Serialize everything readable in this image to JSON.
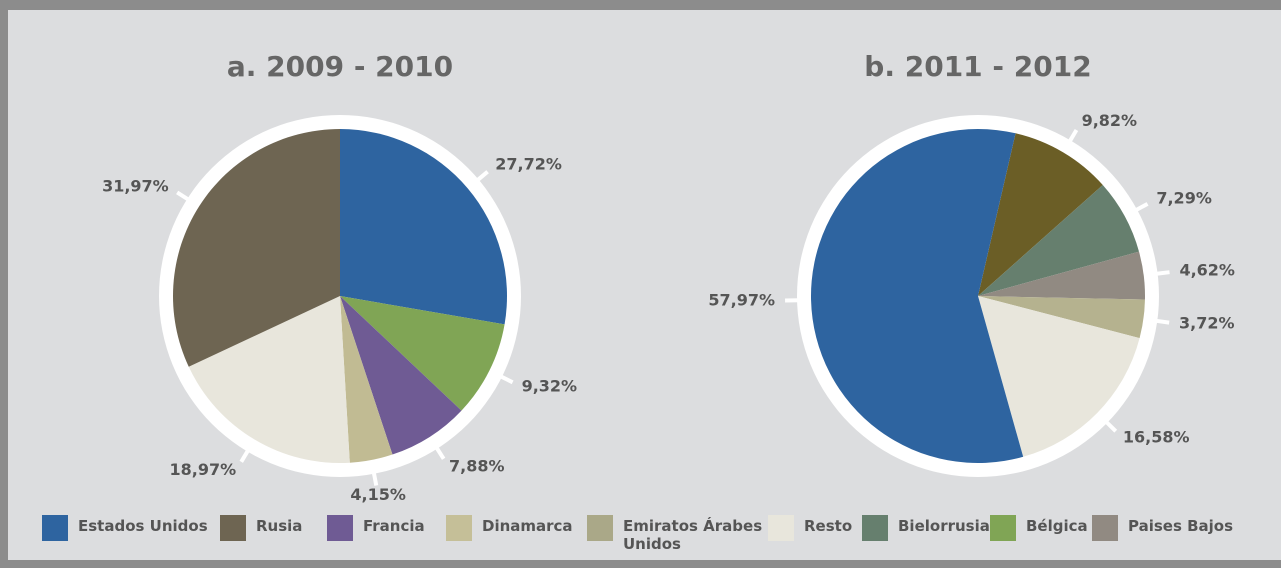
{
  "chart_data": [
    {
      "type": "pie",
      "title": "a. 2009 - 2010",
      "values": [
        27.72,
        9.32,
        7.88,
        4.15,
        18.97,
        31.97
      ],
      "value_labels": [
        "27,72%",
        "9,32%",
        "7,88%",
        "4,15%",
        "18,97%",
        "31,97%"
      ],
      "colors": [
        "#2e64a0",
        "#80a555",
        "#6f5b94",
        "#c1bb93",
        "#e8e6dc",
        "#6e6552"
      ]
    },
    {
      "type": "pie",
      "title": "b. 2011 - 2012",
      "values": [
        9.82,
        7.29,
        4.62,
        3.72,
        16.58,
        57.97
      ],
      "value_labels": [
        "9,82%",
        "7,29%",
        "4,62%",
        "3,72%",
        "16,58%",
        "57,97%"
      ],
      "colors": [
        "#6b5e26",
        "#667f6e",
        "#918a82",
        "#b5b28f",
        "#e8e6dc",
        "#2e64a0"
      ]
    }
  ],
  "legend": [
    {
      "name": "Estados Unidos",
      "color": "#2e64a0"
    },
    {
      "name": "Rusia",
      "color": "#6e6552"
    },
    {
      "name": "Francia",
      "color": "#6f5b94"
    },
    {
      "name": "Dinamarca",
      "color": "#c5bf98"
    },
    {
      "name": "Emiratos Árabes Unidos",
      "color": "#aaa888"
    },
    {
      "name": "Resto",
      "color": "#e8e6dc"
    },
    {
      "name": "Bielorrusia",
      "color": "#667f6e"
    },
    {
      "name": "Bélgica",
      "color": "#80a555"
    },
    {
      "name": "Paises Bajos",
      "color": "#918a82"
    }
  ]
}
